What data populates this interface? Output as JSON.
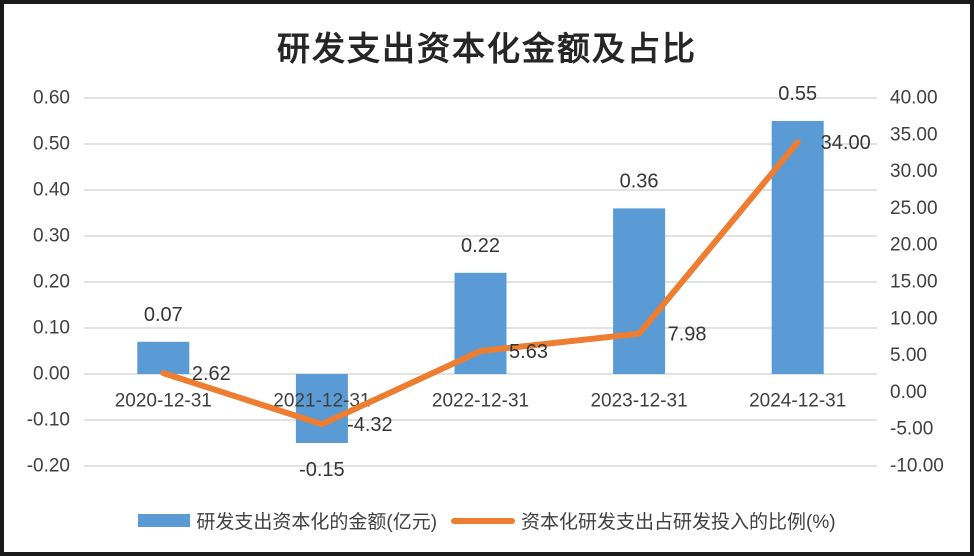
{
  "chart_data": {
    "type": "combo-bar-line",
    "title": "研发支出资本化金额及占比",
    "categories": [
      "2020-12-31",
      "2021-12-31",
      "2022-12-31",
      "2023-12-31",
      "2024-12-31"
    ],
    "series": [
      {
        "name": "研发支出资本化的金额(亿元)",
        "type": "bar",
        "axis": "left",
        "color": "#5B9BD5",
        "values": [
          0.07,
          -0.15,
          0.22,
          0.36,
          0.55
        ],
        "labels": [
          "0.07",
          "-0.15",
          "0.22",
          "0.36",
          "0.55"
        ]
      },
      {
        "name": "资本化研发支出占研发投入的比例(%)",
        "type": "line",
        "axis": "right",
        "color": "#ED7D31",
        "values": [
          2.62,
          -4.32,
          5.63,
          7.98,
          34.0
        ],
        "labels": [
          "2.62",
          "-4.32",
          "5.63",
          "7.98",
          "34.00"
        ]
      }
    ],
    "left_axis": {
      "min": -0.2,
      "max": 0.6,
      "step": 0.1,
      "ticks": [
        "0.60",
        "0.50",
        "0.40",
        "0.30",
        "0.20",
        "0.10",
        "0.00",
        "-0.10",
        "-0.20"
      ]
    },
    "right_axis": {
      "min": -10.0,
      "max": 40.0,
      "step": 5.0,
      "ticks": [
        "40.00",
        "35.00",
        "30.00",
        "25.00",
        "20.00",
        "15.00",
        "10.00",
        "5.00",
        "0.00",
        "-5.00",
        "-10.00"
      ]
    },
    "grid": true,
    "legend_position": "bottom",
    "colors": {
      "bar": "#5B9BD5",
      "line": "#ED7D31",
      "grid": "#d9d9d9",
      "text": "#404040",
      "title": "#262626",
      "frame_border": "#1a1a1a",
      "background": "#ffffff"
    }
  }
}
